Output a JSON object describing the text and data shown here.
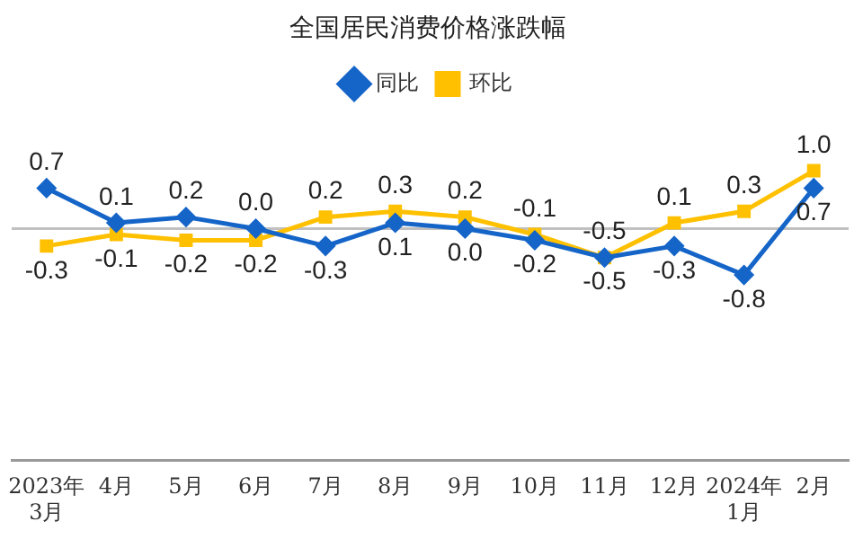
{
  "chart_data": {
    "type": "line",
    "title": "全国居民消费价格涨跌幅",
    "categories": [
      "2023年\n3月",
      "4月",
      "5月",
      "6月",
      "7月",
      "8月",
      "9月",
      "10月",
      "11月",
      "12月",
      "2024年\n1月",
      "2月"
    ],
    "series": [
      {
        "name": "同比",
        "color": "#1565c8",
        "marker": "diamond",
        "values": [
          0.7,
          0.1,
          0.2,
          0.0,
          -0.3,
          0.1,
          0.0,
          -0.2,
          -0.5,
          -0.3,
          -0.8,
          0.7
        ],
        "value_labels": [
          "0.7",
          "0.1",
          "0.2",
          "0.0",
          "-0.3",
          "0.1",
          "0.0",
          "-0.2",
          "-0.5",
          "-0.3",
          "-0.8",
          "0.7"
        ]
      },
      {
        "name": "环比",
        "color": "#ffc000",
        "marker": "square",
        "values": [
          -0.3,
          -0.1,
          -0.2,
          -0.2,
          0.2,
          0.3,
          0.2,
          -0.1,
          -0.5,
          0.1,
          0.3,
          1.0
        ],
        "value_labels": [
          "-0.3",
          "-0.1",
          "-0.2",
          "-0.2",
          "0.2",
          "0.3",
          "0.2",
          "-0.1",
          "-0.5",
          "0.1",
          "0.3",
          "1.0"
        ]
      }
    ],
    "ref_lines": [
      {
        "axis": "y",
        "value": 0,
        "color": "#c0c0c0"
      }
    ],
    "legend": "top",
    "grid": false,
    "tick_labels": "x",
    "line_style": "solid"
  }
}
